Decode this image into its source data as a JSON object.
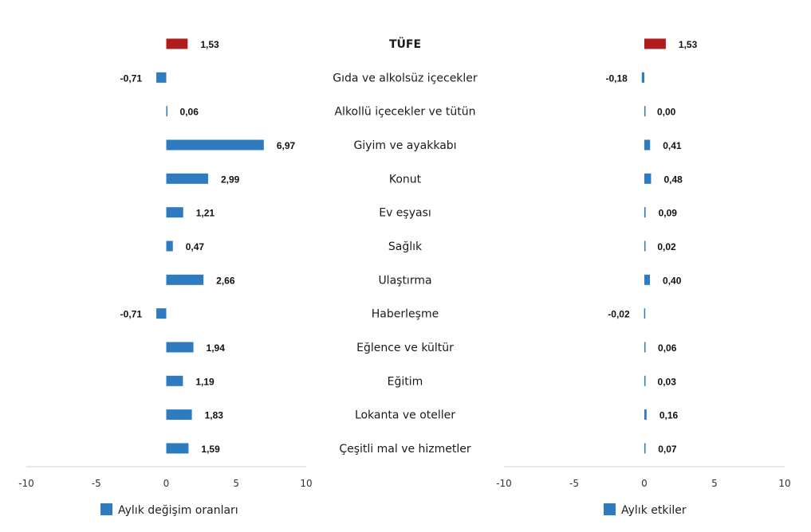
{
  "chart_data": [
    {
      "type": "bar",
      "orientation": "horizontal",
      "xlim": [
        -10,
        10
      ],
      "xticks": [
        "-10",
        "-5",
        "0",
        "5",
        "10"
      ],
      "legend": "Aylık değişim oranları",
      "legend_position": "bottom",
      "grid": false,
      "categories": [
        "TÜFE",
        "Gıda ve alkolsüz içecekler",
        "Alkollü içecekler ve tütün",
        "Giyim ve ayakkabı",
        "Konut",
        "Ev eşyası",
        "Sağlık",
        "Ulaştırma",
        "Haberleşme",
        "Eğlence ve kültür",
        "Eğitim",
        "Lokanta ve oteller",
        "Çeşitli mal ve hizmetler"
      ],
      "values": [
        1.53,
        -0.71,
        0.06,
        6.97,
        2.99,
        1.21,
        0.47,
        2.66,
        -0.71,
        1.94,
        1.19,
        1.83,
        1.59
      ],
      "labels": [
        "1,53",
        "-0,71",
        "0,06",
        "6,97",
        "2,99",
        "1,21",
        "0,47",
        "2,66",
        "-0,71",
        "1,94",
        "1,19",
        "1,83",
        "1,59"
      ]
    },
    {
      "type": "bar",
      "orientation": "horizontal",
      "xlim": [
        -10,
        10
      ],
      "xticks": [
        "-10",
        "-5",
        "0",
        "5",
        "10"
      ],
      "legend": "Aylık etkiler",
      "legend_position": "bottom",
      "grid": false,
      "categories": [
        "TÜFE",
        "Gıda ve alkolsüz içecekler",
        "Alkollü içecekler ve tütün",
        "Giyim ve ayakkabı",
        "Konut",
        "Ev eşyası",
        "Sağlık",
        "Ulaştırma",
        "Haberleşme",
        "Eğlence ve kültür",
        "Eğitim",
        "Lokanta ve oteller",
        "Çeşitli mal ve hizmetler"
      ],
      "values": [
        1.53,
        -0.18,
        0.0,
        0.41,
        0.48,
        0.09,
        0.02,
        0.4,
        -0.02,
        0.06,
        0.03,
        0.16,
        0.07
      ],
      "labels": [
        "1,53",
        "-0,18",
        "0,00",
        "0,41",
        "0,48",
        "0,09",
        "0,02",
        "0,40",
        "-0,02",
        "0,06",
        "0,03",
        "0,16",
        "0,07"
      ]
    }
  ],
  "colors": {
    "series": "#2e7bbf",
    "highlight": "#b01c1c",
    "axis": "#d0d0d0"
  },
  "highlight_category": "TÜFE"
}
